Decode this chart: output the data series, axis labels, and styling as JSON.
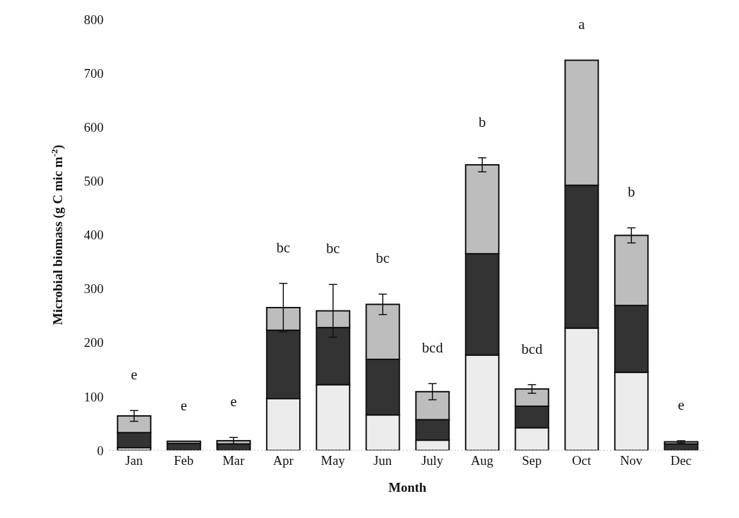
{
  "chart_data": {
    "type": "bar",
    "stacked": true,
    "xlabel": "Month",
    "ylabel": "Microbial biomass (g C mic m$^{-2}$)",
    "categories": [
      "Jan",
      "Feb",
      "Mar",
      "Apr",
      "May",
      "Jun",
      "July",
      "Aug",
      "Sep",
      "Oct",
      "Nov",
      "Dec"
    ],
    "series": [
      {
        "color": "#ececec",
        "values": [
          5,
          null,
          null,
          96,
          122,
          66,
          19,
          177,
          42,
          227,
          145,
          null
        ]
      },
      {
        "color": "#333333",
        "values": [
          28,
          13,
          12,
          127,
          106,
          103,
          38,
          188,
          40,
          265,
          124,
          12
        ]
      },
      {
        "color": "#bdbdbd",
        "values": [
          31,
          4,
          6,
          42,
          31,
          102,
          52,
          165,
          32,
          232,
          130,
          4
        ],
        "errors": [
          10,
          null,
          6,
          45,
          49,
          19,
          15,
          13,
          8,
          null,
          14,
          2
        ]
      }
    ],
    "ylim": [
      0,
      800
    ],
    "yticks": [
      0,
      100,
      200,
      300,
      400,
      500,
      600,
      700,
      800
    ],
    "grid": false,
    "legend": false,
    "annotations": [
      "e",
      "e",
      "e",
      "bc",
      "bc",
      "bc",
      "bcd",
      "b",
      "bcd",
      "a",
      "b",
      "e"
    ]
  }
}
